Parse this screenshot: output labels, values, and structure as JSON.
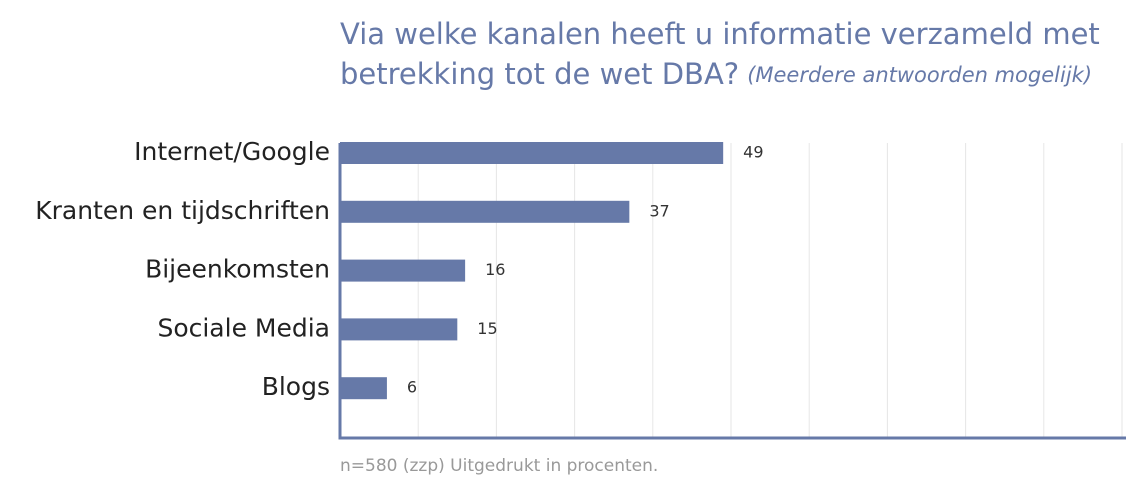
{
  "chart_data": {
    "type": "bar",
    "orientation": "horizontal",
    "title_lines": [
      "Via welke kanalen heeft u informatie verzameld met",
      "betrekking tot de wet DBA?"
    ],
    "subtitle": "(Meerdere antwoorden mogelijk)",
    "categories": [
      "Internet/Google",
      "Kranten en tijdschriften",
      "Bijeenkomsten",
      "Sociale Media",
      "Blogs"
    ],
    "values": [
      49,
      37,
      16,
      15,
      6
    ],
    "color": "#6679a8",
    "xlim": [
      0,
      100
    ],
    "xticks": [
      0,
      10,
      20,
      30,
      40,
      50,
      60,
      70,
      80,
      90,
      100
    ],
    "grid": true,
    "note": "n=580 (zzp) Uitgedrukt in procenten."
  }
}
